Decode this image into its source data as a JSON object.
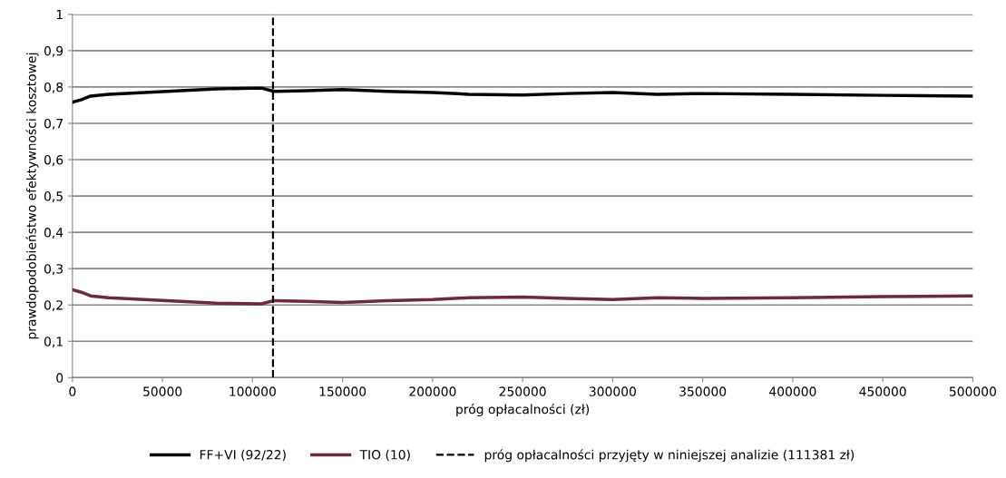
{
  "chart_data": {
    "type": "line",
    "xlabel": "próg opłacalności (zł)",
    "ylabel": "prawdopodobieństwo efektywności kosztowej",
    "xlim": [
      0,
      500000
    ],
    "xticks": [
      0,
      50000,
      100000,
      150000,
      200000,
      250000,
      300000,
      350000,
      400000,
      450000,
      500000
    ],
    "ylim": [
      0,
      1
    ],
    "yticks": [
      {
        "value": 0,
        "label": "0"
      },
      {
        "value": 0.1,
        "label": "0,1"
      },
      {
        "value": 0.2,
        "label": "0,2"
      },
      {
        "value": 0.3,
        "label": "0,3"
      },
      {
        "value": 0.4,
        "label": "0,4"
      },
      {
        "value": 0.5,
        "label": "0,5"
      },
      {
        "value": 0.6,
        "label": "0,6"
      },
      {
        "value": 0.7,
        "label": "0,7"
      },
      {
        "value": 0.8,
        "label": "0,8"
      },
      {
        "value": 0.9,
        "label": "0,9"
      },
      {
        "value": 1,
        "label": "1"
      }
    ],
    "grid": "y",
    "legend": "bottom",
    "marker": "none",
    "line_style": "solid",
    "x": [
      0,
      5000,
      10000,
      20000,
      40000,
      60000,
      80000,
      105000,
      112000,
      130000,
      150000,
      175000,
      200000,
      220000,
      250000,
      275000,
      300000,
      325000,
      350000,
      400000,
      450000,
      500000
    ],
    "series": [
      {
        "name": "FF+VI (92/22)",
        "color": "#000000",
        "values": [
          0.758,
          0.765,
          0.775,
          0.78,
          0.785,
          0.79,
          0.795,
          0.797,
          0.788,
          0.79,
          0.793,
          0.788,
          0.785,
          0.78,
          0.778,
          0.782,
          0.785,
          0.78,
          0.782,
          0.78,
          0.777,
          0.775
        ]
      },
      {
        "name": "TIO (10)",
        "color": "#6b2a3f",
        "values": [
          0.242,
          0.235,
          0.225,
          0.22,
          0.215,
          0.21,
          0.205,
          0.203,
          0.212,
          0.21,
          0.207,
          0.212,
          0.215,
          0.22,
          0.222,
          0.218,
          0.215,
          0.22,
          0.218,
          0.22,
          0.223,
          0.225
        ]
      }
    ],
    "ref_lines": [
      {
        "axis": "x",
        "value": 111381,
        "label": "próg opłacalności przyjęty w niniejszej analizie (111381 zł)",
        "color": "#000000",
        "line_style": "dashed"
      }
    ]
  }
}
